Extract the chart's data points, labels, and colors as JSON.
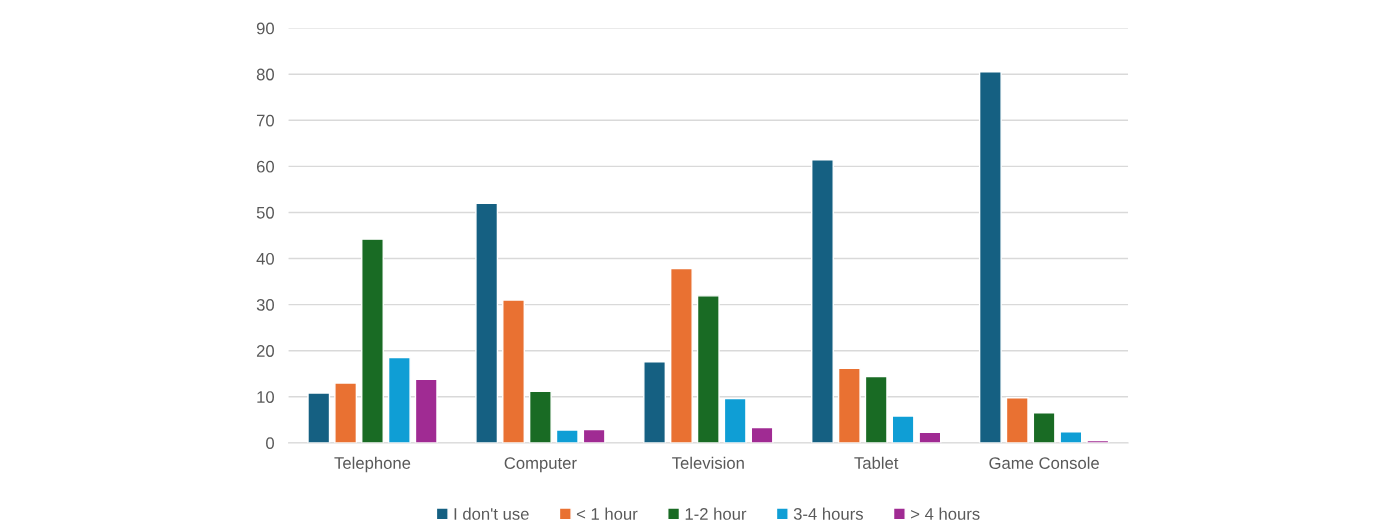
{
  "chart_data": {
    "type": "bar",
    "categories": [
      "Telephone",
      "Computer",
      "Television",
      "Tablet",
      "Game Console"
    ],
    "series": [
      {
        "name": "I don't use",
        "color": "#156082",
        "values": [
          10.8,
          52,
          17.6,
          61.4,
          80.5
        ]
      },
      {
        "name": "< 1 hour",
        "color": "#e97132",
        "values": [
          13,
          31,
          37.8,
          16.2,
          9.8
        ]
      },
      {
        "name": "1-2 hour",
        "color": "#196b24",
        "values": [
          44.2,
          11.2,
          31.9,
          14.4,
          6.5
        ]
      },
      {
        "name": "3-4 hours",
        "color": "#0f9ed5",
        "values": [
          18.5,
          2.8,
          9.6,
          5.8,
          2.4
        ]
      },
      {
        "name": "> 4 hours",
        "color": "#a02b93",
        "values": [
          13.8,
          2.9,
          3.3,
          2.3,
          0.5
        ]
      }
    ],
    "ylim": [
      0,
      90
    ],
    "yticks": [
      0,
      10,
      20,
      30,
      40,
      50,
      60,
      70,
      80,
      90
    ],
    "grid": "y",
    "legend": "bottom"
  }
}
